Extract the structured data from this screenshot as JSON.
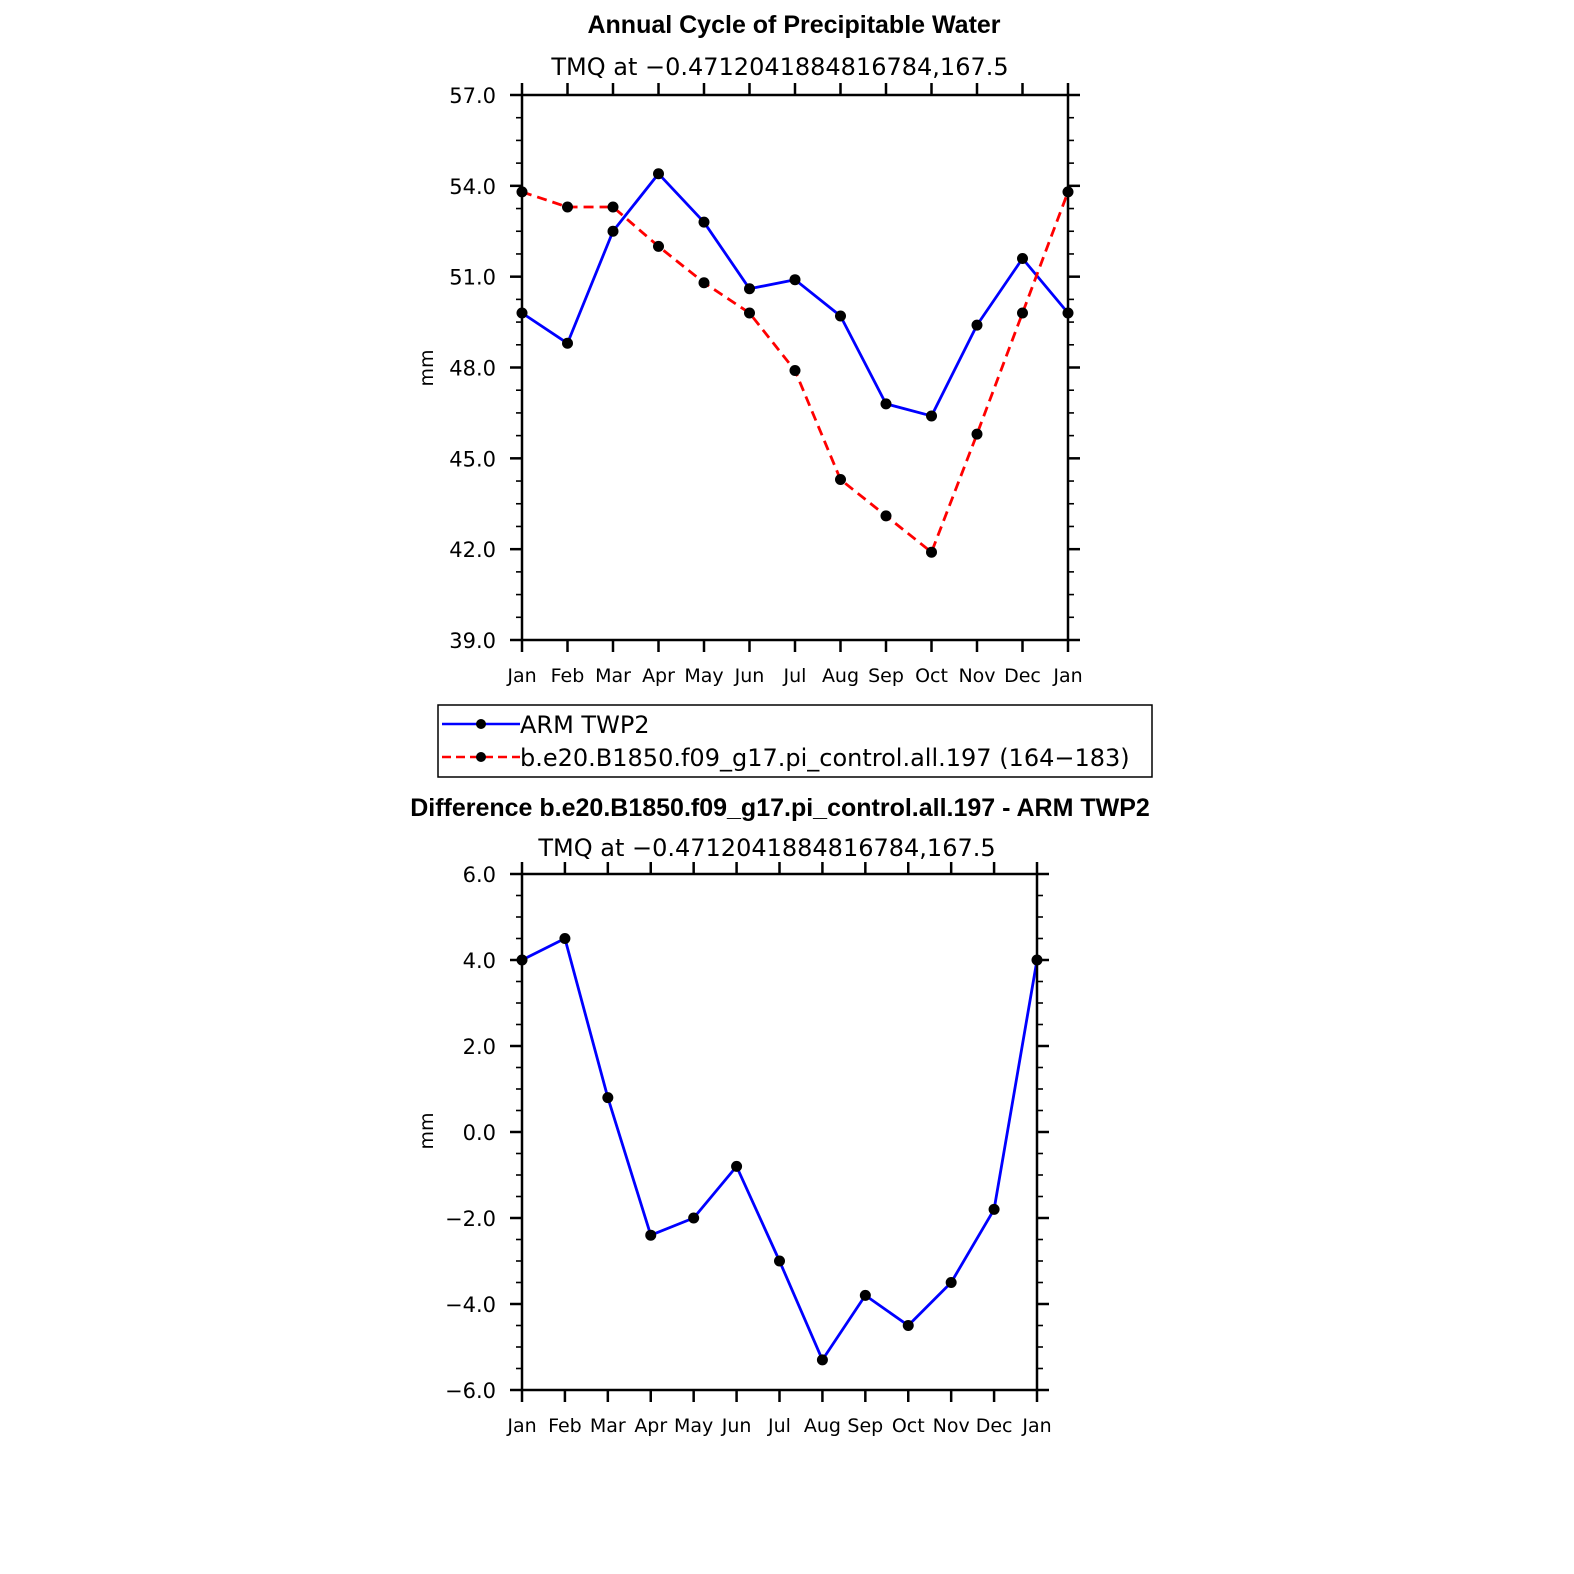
{
  "chart_data": [
    {
      "type": "line",
      "title": "Annual Cycle of Precipitable Water",
      "subtitle": "TMQ at −0.4712041884816784,167.5",
      "xlabel": "",
      "ylabel": "mm",
      "categories": [
        "Jan",
        "Feb",
        "Mar",
        "Apr",
        "May",
        "Jun",
        "Jul",
        "Aug",
        "Sep",
        "Oct",
        "Nov",
        "Dec",
        "Jan"
      ],
      "ylim": [
        39.0,
        57.0
      ],
      "yticks": [
        "39.0",
        "42.0",
        "45.0",
        "48.0",
        "51.0",
        "54.0",
        "57.0"
      ],
      "legend": "bottom",
      "series": [
        {
          "name": "ARM TWP2",
          "color": "#0000ff",
          "dash": "solid",
          "values": [
            49.8,
            48.8,
            52.5,
            54.4,
            52.8,
            50.6,
            50.9,
            49.7,
            46.8,
            46.4,
            49.4,
            51.6,
            49.8
          ]
        },
        {
          "name": "b.e20.B1850.f09_g17.pi_control.all.197 (164−183)",
          "color": "#ff0000",
          "dash": "dashed",
          "values": [
            53.8,
            53.3,
            53.3,
            52.0,
            50.8,
            49.8,
            47.9,
            44.3,
            43.1,
            41.9,
            45.8,
            49.8,
            53.8
          ]
        }
      ]
    },
    {
      "type": "line",
      "title": "Difference b.e20.B1850.f09_g17.pi_control.all.197 - ARM TWP2",
      "subtitle": "TMQ at −0.4712041884816784,167.5",
      "xlabel": "",
      "ylabel": "mm",
      "categories": [
        "Jan",
        "Feb",
        "Mar",
        "Apr",
        "May",
        "Jun",
        "Jul",
        "Aug",
        "Sep",
        "Oct",
        "Nov",
        "Dec",
        "Jan"
      ],
      "ylim": [
        -6.0,
        6.0
      ],
      "yticks": [
        "−6.0",
        "−4.0",
        "−2.0",
        "0.0",
        "2.0",
        "4.0",
        "6.0"
      ],
      "series": [
        {
          "name": "Difference",
          "color": "#0000ff",
          "dash": "solid",
          "values": [
            4.0,
            4.5,
            0.8,
            -2.4,
            -2.0,
            -0.8,
            -3.0,
            -5.3,
            -3.8,
            -4.5,
            -3.5,
            -1.8,
            4.0
          ]
        }
      ]
    }
  ]
}
